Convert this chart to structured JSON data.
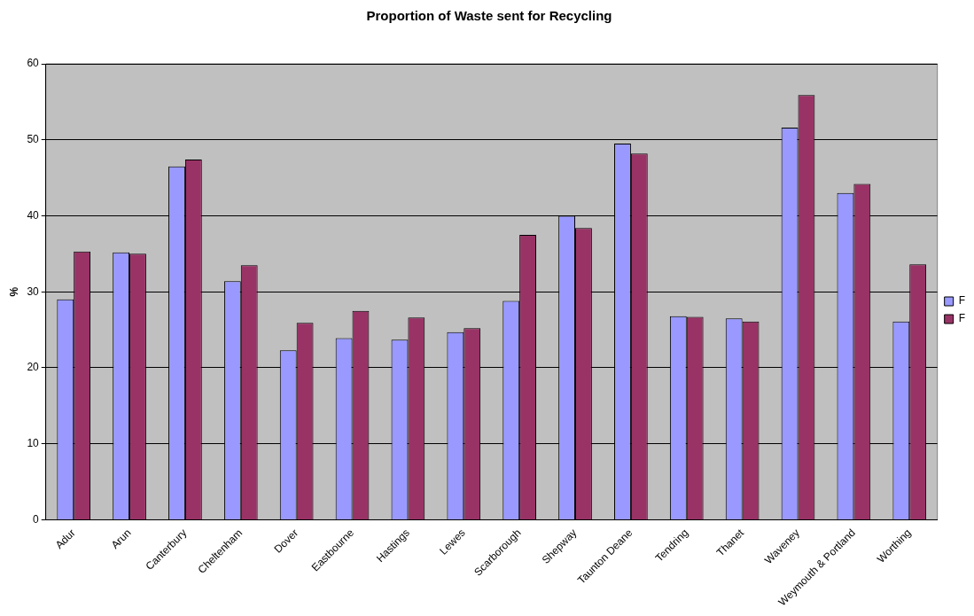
{
  "chart_data": {
    "type": "bar",
    "title": "Proportion of Waste sent for Recycling",
    "ylabel": "%",
    "categories": [
      "Adur",
      "Arun",
      "Canterbury",
      "Cheltenham",
      "Dover",
      "Eastbourne",
      "Hastings",
      "Lewes",
      "Scarborough",
      "Shepway",
      "Taunton Deane",
      "Tendring",
      "Thanet",
      "Waveney",
      "Weymouth & Portland",
      "Worthing"
    ],
    "series": [
      {
        "name": "F",
        "color": "#9999ff",
        "values": [
          29.0,
          35.2,
          46.5,
          31.4,
          22.3,
          23.9,
          23.7,
          24.7,
          28.8,
          40.0,
          49.5,
          26.8,
          26.5,
          51.6,
          43.0,
          26.1
        ]
      },
      {
        "name": "F",
        "color": "#993366",
        "values": [
          35.3,
          35.0,
          47.4,
          33.5,
          25.9,
          27.5,
          26.6,
          25.2,
          37.5,
          38.4,
          48.2,
          26.7,
          26.1,
          55.9,
          44.2,
          33.6
        ]
      }
    ],
    "ylim": [
      0,
      60
    ],
    "yticks": [
      0,
      10,
      20,
      30,
      40,
      50,
      60
    ],
    "grid": "y",
    "legend": "right"
  }
}
